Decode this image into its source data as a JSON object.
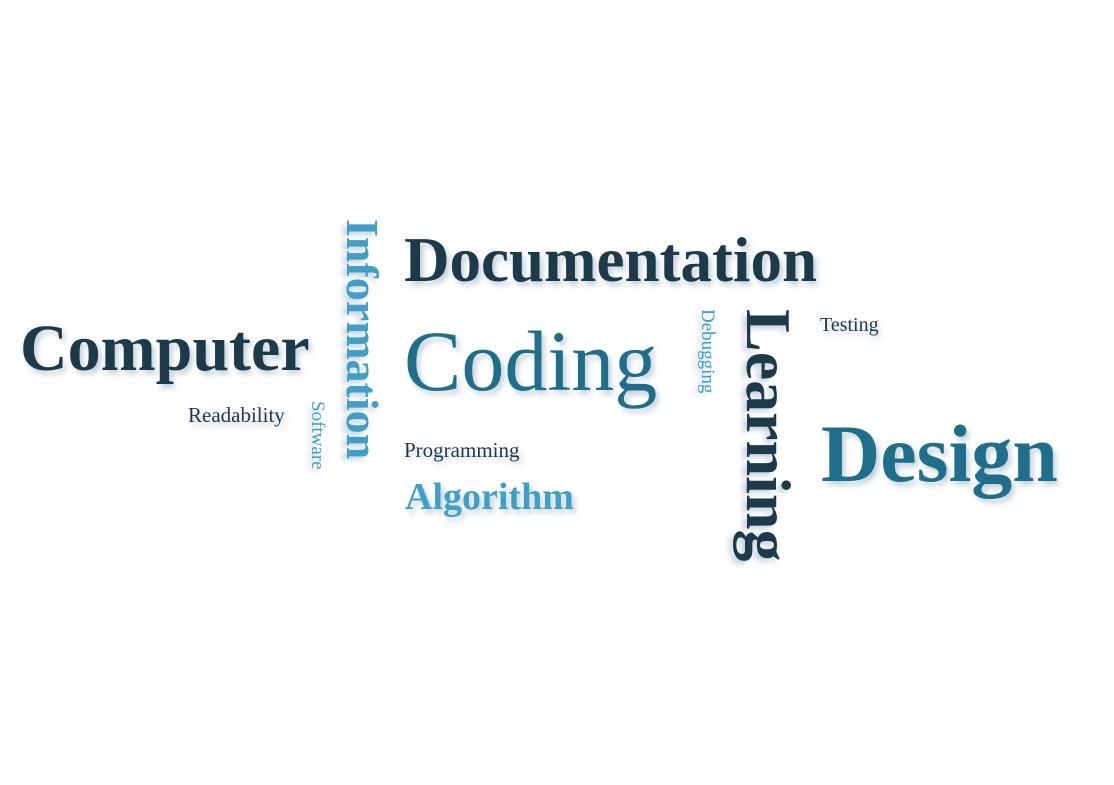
{
  "words": {
    "documentation": "Documentation",
    "computer": "Computer",
    "coding": "Coding",
    "testing": "Testing",
    "readability": "Readability",
    "programming": "Programming",
    "algorithm": "Algorithm",
    "design": "Design",
    "information": "Information",
    "software": "Software",
    "debugging": "Debugging",
    "learning": "Learning"
  },
  "colors": {
    "dark": "#1c3a4a",
    "teal": "#1f6f8b",
    "light": "#3f9fc6",
    "background": "#ffffff"
  }
}
